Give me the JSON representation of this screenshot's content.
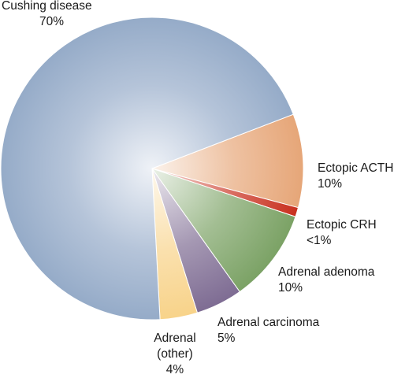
{
  "chart_data": {
    "type": "pie",
    "slices": [
      {
        "label": "Cushing disease",
        "value_label": "70%",
        "value": 70,
        "color": "#95abc8"
      },
      {
        "label": "Ectopic ACTH",
        "value_label": "10%",
        "value": 10,
        "color": "#e6a678"
      },
      {
        "label": "Ectopic CRH",
        "value_label": "<1%",
        "value": 1,
        "color": "#c8301e"
      },
      {
        "label": "Adrenal adenoma",
        "value_label": "10%",
        "value": 10,
        "color": "#7ba265"
      },
      {
        "label": "Adrenal carcinoma",
        "value_label": "5%",
        "value": 5,
        "color": "#7e6c93"
      },
      {
        "label": "Adrenal\n(other)",
        "value_label": "4%",
        "value": 4,
        "color": "#f8d38a"
      }
    ]
  }
}
